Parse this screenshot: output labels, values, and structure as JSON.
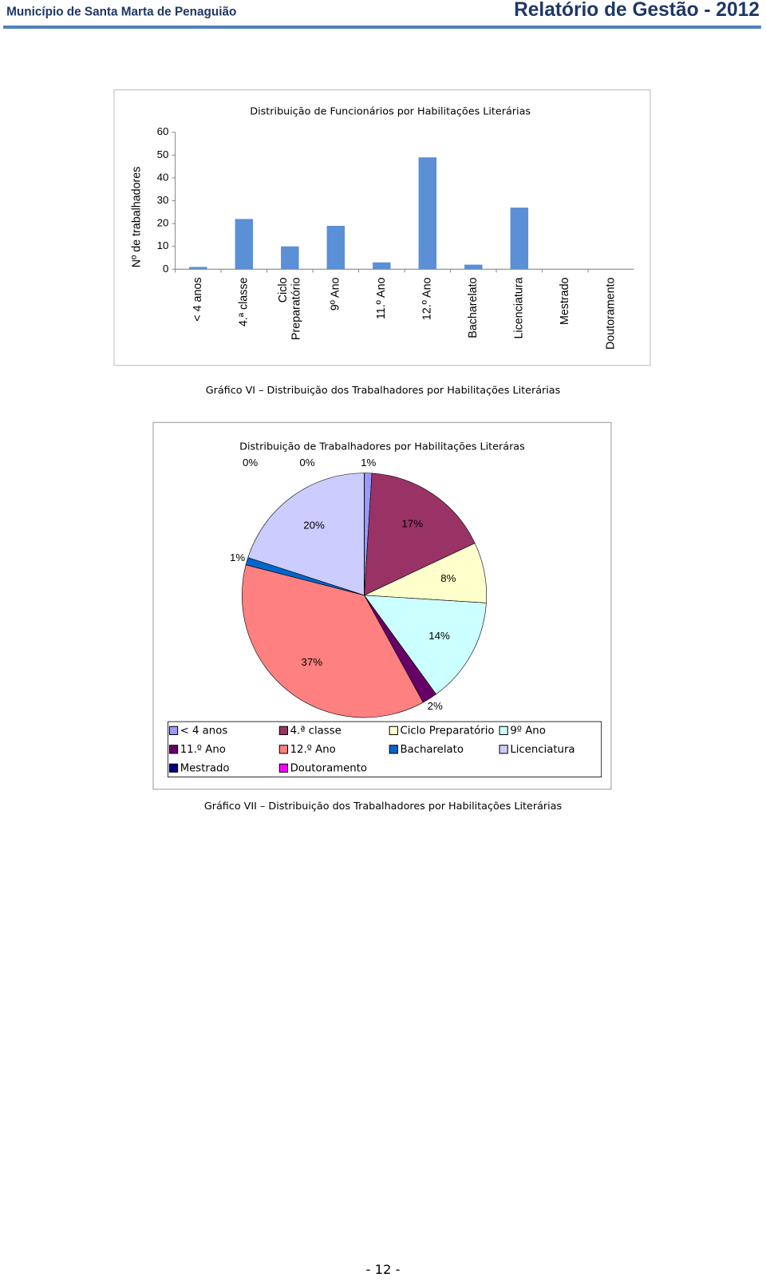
{
  "header": {
    "left": "Município de Santa Marta de Penaguião",
    "right": "Relatório de Gestão - 2012"
  },
  "chart_data": [
    {
      "type": "bar",
      "title": "Distribuição de Funcionários por Habilitações Literárias",
      "y_label": "Nº de trabalhadores",
      "categories": [
        "< 4 anos",
        "4.ª classe",
        "Ciclo Preparatório",
        "9º Ano",
        "11.º  Ano",
        "12.º Ano",
        "Bacharelato",
        "Licenciatura",
        "Mestrado",
        "Doutoramento"
      ],
      "values": [
        1,
        22,
        10,
        19,
        3,
        49,
        2,
        27,
        0,
        0
      ],
      "color": "#5b8fd6",
      "ylim": [
        0,
        60
      ],
      "yticks": [
        0,
        10,
        20,
        30,
        40,
        50,
        60
      ],
      "grid": false
    },
    {
      "type": "pie",
      "title": "Distribuição de Trabalhadores por Habilitações Literáras",
      "categories": [
        "< 4 anos",
        "4.ª classe",
        "Ciclo Preparatório",
        "9º Ano",
        "11.º  Ano",
        "12.º Ano",
        "Bacharelato",
        "Licenciatura",
        "Mestrado",
        "Doutoramento"
      ],
      "values": [
        1,
        17,
        8,
        14,
        2,
        37,
        1,
        20,
        0,
        0
      ],
      "value_labels": [
        "1%",
        "17%",
        "8%",
        "14%",
        "2%",
        "37%",
        "1%",
        "20%",
        "0%",
        "0%"
      ],
      "colors": [
        "#9999ff",
        "#993366",
        "#ffffcc",
        "#ccffff",
        "#660066",
        "#ff8080",
        "#0066cc",
        "#ccccff",
        "#000080",
        "#ff00ff"
      ],
      "legend": "bottom"
    }
  ],
  "captions": [
    "Gráfico VI – Distribuição dos Trabalhadores por Habilitações Literárias",
    "Gráfico VII – Distribuição dos Trabalhadores por Habilitações Literárias"
  ],
  "page_number": "- 12 -"
}
